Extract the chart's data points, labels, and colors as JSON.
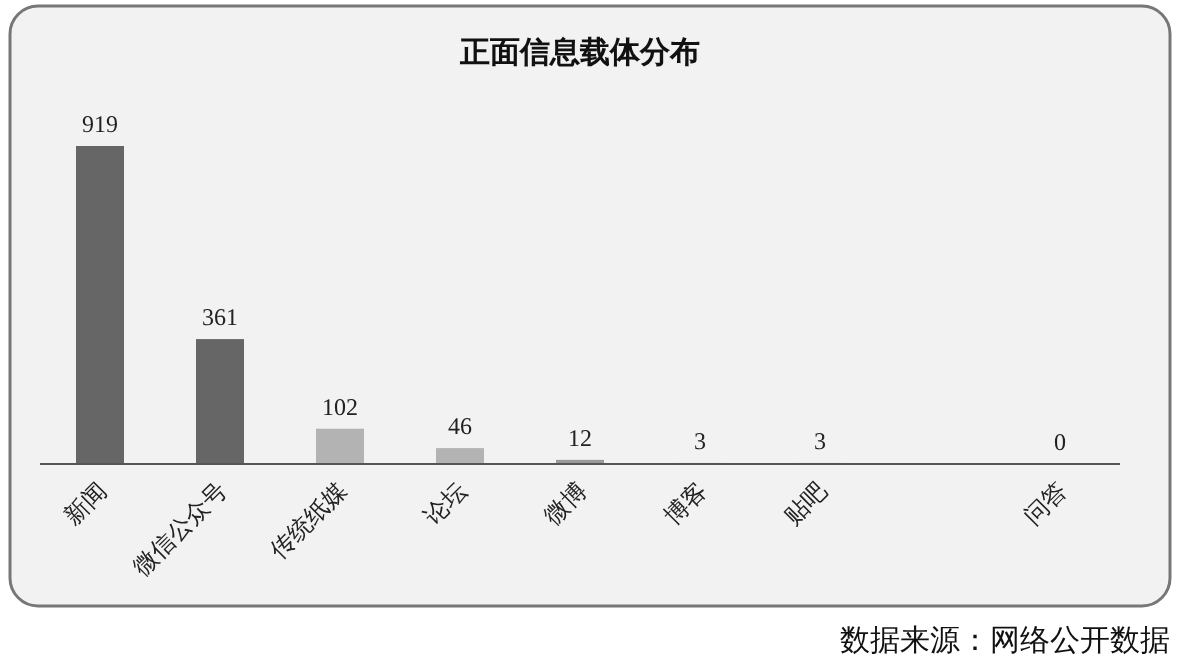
{
  "chart_data": {
    "type": "bar",
    "title": "正面信息载体分布",
    "categories": [
      "新闻",
      "微信公众号",
      "传统纸媒",
      "论坛",
      "微博",
      "博客",
      "贴吧",
      null,
      "问答"
    ],
    "values": [
      919,
      361,
      102,
      46,
      12,
      3,
      3,
      null,
      0
    ],
    "colors": [
      "#666666",
      "#666666",
      "#b3b3b3",
      "#b3b3b3",
      "#999999",
      "#999999",
      "#999999",
      null,
      "#999999"
    ],
    "data_labels": true,
    "annotations": [
      "数据来源：网络公开数据"
    ]
  }
}
